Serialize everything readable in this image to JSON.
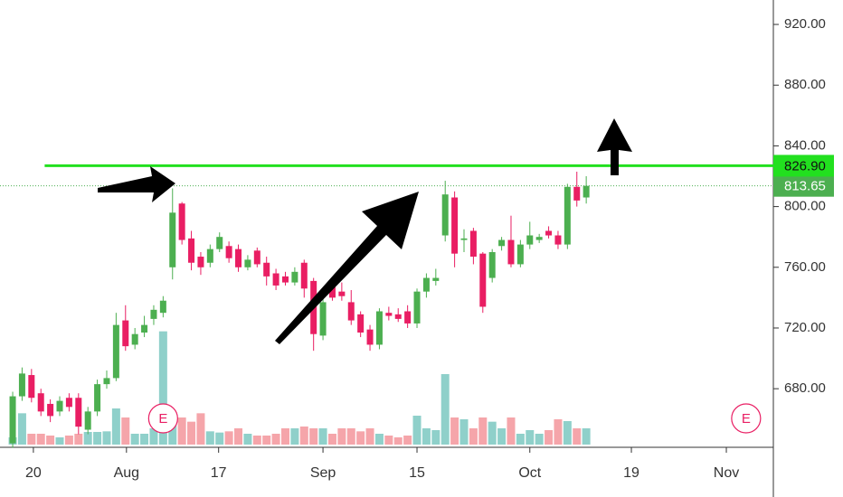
{
  "chart_data": {
    "type": "candlestick",
    "x": [
      0,
      1,
      2,
      3,
      4,
      5,
      6,
      7,
      8,
      9,
      10,
      11,
      12,
      13,
      14,
      15,
      16,
      17,
      18,
      19,
      20,
      21,
      22,
      23,
      24,
      25,
      26,
      27,
      28,
      29,
      30,
      31,
      32,
      33,
      34,
      35,
      36,
      37,
      38,
      39,
      40,
      41,
      42,
      43,
      44,
      45,
      46,
      47,
      48,
      49,
      50,
      51,
      52,
      53,
      54,
      55,
      56,
      57,
      58,
      59,
      60,
      61
    ],
    "open": [
      644,
      675,
      689,
      677,
      670,
      665,
      674,
      674,
      653,
      665,
      683,
      687,
      725,
      709,
      717,
      726,
      730,
      760,
      802,
      779,
      767,
      763,
      772,
      774,
      772,
      760,
      771,
      763,
      756,
      754,
      750,
      763,
      751,
      715,
      747,
      744,
      737,
      729,
      719,
      709,
      730,
      729,
      731,
      723,
      744,
      751,
      781,
      806,
      778,
      784,
      769,
      753,
      774,
      778,
      762,
      775,
      778,
      784,
      781,
      775,
      813,
      806
    ],
    "high": [
      678,
      694,
      693,
      680,
      673,
      675,
      677,
      677,
      668,
      686,
      692,
      730,
      735,
      720,
      728,
      735,
      741,
      812,
      803,
      784,
      770,
      775,
      783,
      777,
      775,
      768,
      773,
      767,
      759,
      757,
      760,
      765,
      753,
      740,
      752,
      750,
      745,
      731,
      722,
      733,
      734,
      733,
      735,
      746,
      756,
      759,
      817,
      810,
      785,
      786,
      770,
      772,
      780,
      794,
      778,
      790,
      782,
      787,
      784,
      815,
      823,
      820
    ],
    "low": [
      641,
      672,
      671,
      662,
      658,
      662,
      665,
      650,
      650,
      662,
      680,
      685,
      705,
      706,
      714,
      722,
      727,
      752,
      775,
      758,
      755,
      760,
      770,
      763,
      757,
      758,
      760,
      748,
      745,
      748,
      748,
      740,
      705,
      712,
      738,
      738,
      722,
      714,
      705,
      706,
      725,
      724,
      720,
      720,
      740,
      748,
      777,
      760,
      770,
      762,
      730,
      750,
      771,
      760,
      760,
      772,
      776,
      779,
      772,
      772,
      800,
      802
    ],
    "close": [
      675,
      690,
      674,
      665,
      662,
      672,
      668,
      655,
      665,
      683,
      687,
      722,
      708,
      716,
      722,
      732,
      738,
      796,
      778,
      763,
      760,
      772,
      780,
      766,
      760,
      765,
      762,
      754,
      748,
      750,
      757,
      746,
      716,
      737,
      740,
      741,
      725,
      717,
      709,
      731,
      728,
      726,
      723,
      744,
      753,
      753,
      808,
      769,
      779,
      767,
      734,
      770,
      778,
      762,
      775,
      781,
      780,
      781,
      775,
      813,
      804,
      813.65
    ],
    "volume": [
      12,
      52,
      18,
      18,
      15,
      12,
      15,
      18,
      21,
      21,
      22,
      60,
      45,
      18,
      18,
      27,
      188,
      48,
      45,
      38,
      52,
      22,
      20,
      22,
      27,
      18,
      15,
      15,
      18,
      27,
      27,
      30,
      27,
      27,
      18,
      27,
      27,
      22,
      27,
      18,
      15,
      12,
      15,
      48,
      27,
      24,
      117,
      45,
      42,
      27,
      45,
      38,
      27,
      45,
      18,
      24,
      18,
      24,
      42,
      39,
      27,
      27
    ],
    "vlim": [
      0,
      300
    ],
    "up_color": "#4caf50",
    "down_color": "#e91e63",
    "volume_up_color": "#8fd0ca",
    "volume_down_color": "#f5a5aa",
    "xlim": [
      -1.35,
      80.9
    ],
    "xticks": [
      {
        "value": 2.2,
        "label": "20"
      },
      {
        "value": 12.1,
        "label": "Aug"
      },
      {
        "value": 21.9,
        "label": "17"
      },
      {
        "value": 33,
        "label": "Sep"
      },
      {
        "value": 43,
        "label": "15"
      },
      {
        "value": 55,
        "label": "Oct"
      },
      {
        "value": 65.8,
        "label": "19"
      },
      {
        "value": 75.9,
        "label": "Nov"
      }
    ],
    "ylim": [
      641.4,
      936.1
    ],
    "yticks": [
      {
        "value": 680,
        "label": "680.00"
      },
      {
        "value": 720,
        "label": "720.00"
      },
      {
        "value": 760,
        "label": "760.00"
      },
      {
        "value": 800,
        "label": "800.00"
      },
      {
        "value": 840,
        "label": "840.00"
      },
      {
        "value": 880,
        "label": "880.00"
      },
      {
        "value": 920,
        "label": "920.00"
      }
    ],
    "last_price": {
      "value": 813.65,
      "label": "813.65",
      "color": "#4caf50"
    },
    "level_line": {
      "value": 826.9,
      "label": "826.90",
      "color": "#22e01f",
      "start": 3.4
    },
    "markers": [
      {
        "x": 16,
        "label": "E"
      },
      {
        "x": 78,
        "label": "E"
      }
    ]
  }
}
